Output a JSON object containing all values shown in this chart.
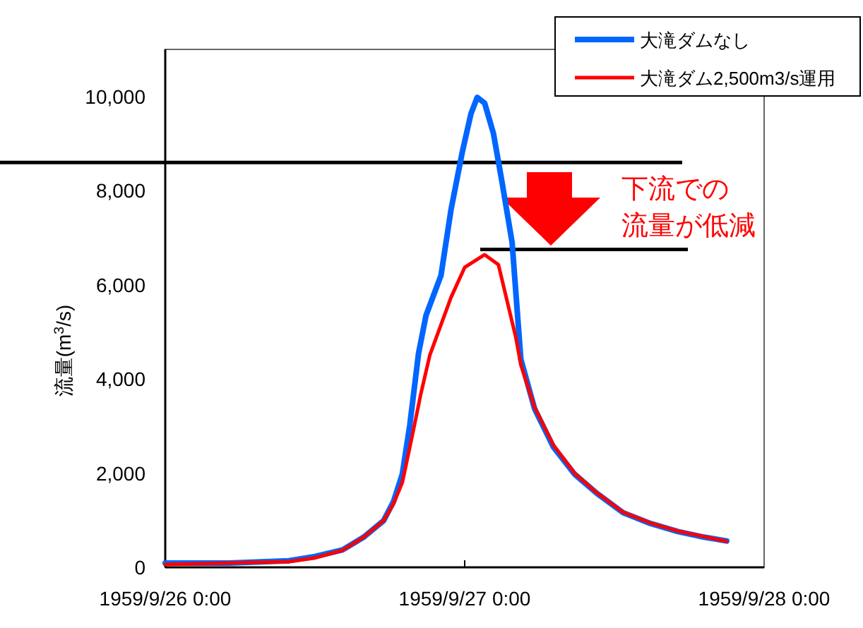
{
  "chart_data": {
    "type": "line",
    "ylabel": "流量(m$^{3}$/s)",
    "xlim": [
      "1959-09-26T00:00",
      "1959-09-28T00:00"
    ],
    "xticks": [
      {
        "value": "1959-09-26T00:00",
        "label": "1959/9/26 0:00"
      },
      {
        "value": "1959-09-27T00:00",
        "label": "1959/9/27 0:00"
      },
      {
        "value": "1959-09-28T00:00",
        "label": "1959/9/28 0:00"
      }
    ],
    "ylim": [
      0,
      11000
    ],
    "yticks": [
      0,
      {
        "value": 2000,
        "label": "2,000"
      },
      {
        "value": 4000,
        "label": "4,000"
      },
      {
        "value": 6000,
        "label": "6,000"
      },
      {
        "value": 8000,
        "label": "8,000"
      },
      {
        "value": 10000,
        "label": "10,000"
      }
    ],
    "grid": false,
    "legend": "top right",
    "marker": "none",
    "line_style": "solid",
    "series": [
      {
        "name": "大滝ダムなし",
        "color": "#0066ff",
        "x": [
          "1959-09-26T00:00",
          "1959-09-26T05:06",
          "1959-09-26T09:54",
          "1959-09-26T12:00",
          "1959-09-26T14:12",
          "1959-09-26T15:54",
          "1959-09-26T17:30",
          "1959-09-26T18:18",
          "1959-09-26T19:00",
          "1959-09-26T19:36",
          "1959-09-26T20:18",
          "1959-09-26T20:54",
          "1959-09-26T22:06",
          "1959-09-26T22:54",
          "1959-09-26T23:48",
          "1959-09-27T00:30",
          "1959-09-27T01:00",
          "1959-09-27T01:36",
          "1959-09-27T02:18",
          "1959-09-27T03:00",
          "1959-09-27T03:48",
          "1959-09-27T04:30",
          "1959-09-27T05:36",
          "1959-09-27T07:06",
          "1959-09-27T08:48",
          "1959-09-27T10:36",
          "1959-09-27T12:42",
          "1959-09-27T14:54",
          "1959-09-27T17:06",
          "1959-09-27T19:12",
          "1959-09-27T21:00"
        ],
        "values": [
          90,
          90,
          140,
          230,
          370,
          640,
          990,
          1400,
          1980,
          3020,
          4540,
          5350,
          6200,
          7590,
          8810,
          9630,
          9980,
          9860,
          9220,
          8170,
          6900,
          4420,
          3370,
          2560,
          1980,
          1570,
          1160,
          930,
          760,
          640,
          560
        ]
      },
      {
        "name": "大滝ダム2,500m3/s運用",
        "color": "#ff0000",
        "x": [
          "1959-09-26T00:00",
          "1959-09-26T05:00",
          "1959-09-26T09:54",
          "1959-09-26T12:00",
          "1959-09-26T14:12",
          "1959-09-26T15:54",
          "1959-09-26T17:30",
          "1959-09-26T18:18",
          "1959-09-26T19:00",
          "1959-09-26T19:48",
          "1959-09-26T20:30",
          "1959-09-26T21:12",
          "1959-09-26T22:54",
          "1959-09-27T00:00",
          "1959-09-27T01:36",
          "1959-09-27T02:42",
          "1959-09-27T04:06",
          "1959-09-27T04:30",
          "1959-09-27T05:36",
          "1959-09-27T07:06",
          "1959-09-27T08:48",
          "1959-09-27T10:36",
          "1959-09-27T12:42",
          "1959-09-27T14:54",
          "1959-09-27T17:06",
          "1959-09-27T19:12",
          "1959-09-27T21:00"
        ],
        "values": [
          60,
          90,
          120,
          200,
          360,
          640,
          990,
          1350,
          1800,
          2800,
          3700,
          4500,
          5730,
          6370,
          6640,
          6430,
          4880,
          4300,
          3400,
          2600,
          2000,
          1580,
          1170,
          940,
          770,
          650,
          550
        ]
      }
    ],
    "ref_lines": [
      {
        "axis": "y",
        "value": 8600,
        "color": "#000000"
      },
      {
        "axis": "y",
        "value": 6750,
        "color": "#000000"
      }
    ],
    "annotations": [
      "下流での流量が低減"
    ]
  }
}
